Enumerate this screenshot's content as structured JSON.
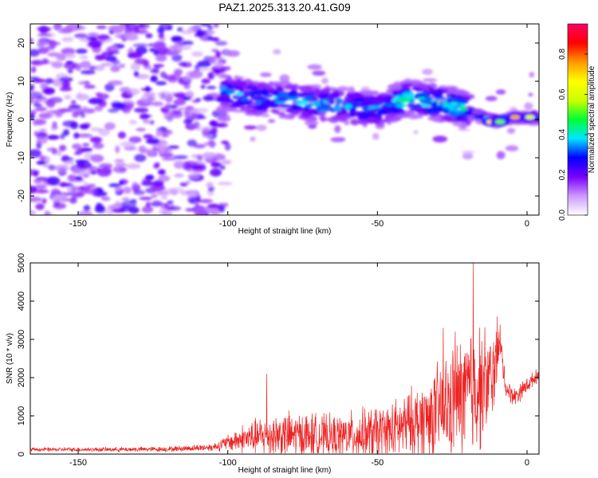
{
  "title": "PAZ1.2025.313.20.41.G09",
  "chart_data": [
    {
      "type": "heatmap",
      "title": "PAZ1.2025.313.20.41.G09",
      "xlabel": "Height of straight line (km)",
      "ylabel": "Frequency (Hz)",
      "xlim": [
        -166,
        4
      ],
      "ylim": [
        -25,
        25
      ],
      "xticks": [
        -150,
        -100,
        -50,
        0
      ],
      "yticks": [
        -20,
        -10,
        0,
        10,
        20
      ],
      "colorbar": {
        "label": "Normalized spectral amplitude",
        "range": [
          0,
          0.95
        ],
        "ticks": [
          "0.0",
          "0.2",
          "0.4",
          "0.6",
          "0.8"
        ],
        "tick_values": [
          0.0,
          0.2,
          0.4,
          0.6,
          0.8
        ],
        "colormap": [
          "#ffffff",
          "#cc99ff",
          "#7a00ff",
          "#0000ff",
          "#00e5ff",
          "#00ff33",
          "#ccff00",
          "#ffff00",
          "#ff9900",
          "#ff0000",
          "#ff0066"
        ]
      },
      "signal_track": [
        {
          "x": -100,
          "freq": 7.0
        },
        {
          "x": -90,
          "freq": 5.5
        },
        {
          "x": -80,
          "freq": 5.0
        },
        {
          "x": -70,
          "freq": 4.0
        },
        {
          "x": -60,
          "freq": 3.5
        },
        {
          "x": -50,
          "freq": 2.5
        },
        {
          "x": -40,
          "freq": 5.5
        },
        {
          "x": -30,
          "freq": 4.5
        },
        {
          "x": -20,
          "freq": 2.5
        },
        {
          "x": -15,
          "freq": 0.5
        },
        {
          "x": -10,
          "freq": -0.5
        },
        {
          "x": -5,
          "freq": 0.5
        },
        {
          "x": 0,
          "freq": 0.5
        },
        {
          "x": 4,
          "freq": 0.5
        }
      ]
    },
    {
      "type": "line",
      "xlabel": "Height of straight line (km)",
      "ylabel": "SNR (10 * v/v)",
      "xlim": [
        -166,
        4
      ],
      "ylim": [
        0,
        5000
      ],
      "xticks": [
        -150,
        -100,
        -50,
        0
      ],
      "yticks": [
        0,
        1000,
        2000,
        3000,
        4000,
        5000
      ],
      "color": "#ee2222",
      "series": [
        {
          "name": "SNR",
          "envelope": [
            {
              "x": -166,
              "mean": 120,
              "spread": 60
            },
            {
              "x": -140,
              "mean": 120,
              "spread": 70
            },
            {
              "x": -120,
              "mean": 130,
              "spread": 80
            },
            {
              "x": -105,
              "mean": 180,
              "spread": 120
            },
            {
              "x": -100,
              "mean": 300,
              "spread": 250
            },
            {
              "x": -95,
              "mean": 400,
              "spread": 450
            },
            {
              "x": -85,
              "mean": 500,
              "spread": 700
            },
            {
              "x": -75,
              "mean": 480,
              "spread": 750
            },
            {
              "x": -65,
              "mean": 450,
              "spread": 650
            },
            {
              "x": -55,
              "mean": 500,
              "spread": 800
            },
            {
              "x": -45,
              "mean": 600,
              "spread": 900
            },
            {
              "x": -35,
              "mean": 900,
              "spread": 1200
            },
            {
              "x": -25,
              "mean": 1300,
              "spread": 1700
            },
            {
              "x": -18,
              "mean": 1700,
              "spread": 2200
            },
            {
              "x": -12,
              "mean": 1900,
              "spread": 1500
            },
            {
              "x": -9,
              "mean": 2900,
              "spread": 600
            },
            {
              "x": -7,
              "mean": 1700,
              "spread": 300
            },
            {
              "x": -4,
              "mean": 1500,
              "spread": 300
            },
            {
              "x": 0,
              "mean": 1800,
              "spread": 250
            },
            {
              "x": 4,
              "mean": 2100,
              "spread": 200
            }
          ],
          "peaks": [
            {
              "x": -18,
              "y": 5000
            },
            {
              "x": -28,
              "y": 3300
            },
            {
              "x": -24,
              "y": 3200
            },
            {
              "x": -10,
              "y": 3600
            },
            {
              "x": -87,
              "y": 2100
            }
          ]
        }
      ]
    }
  ]
}
